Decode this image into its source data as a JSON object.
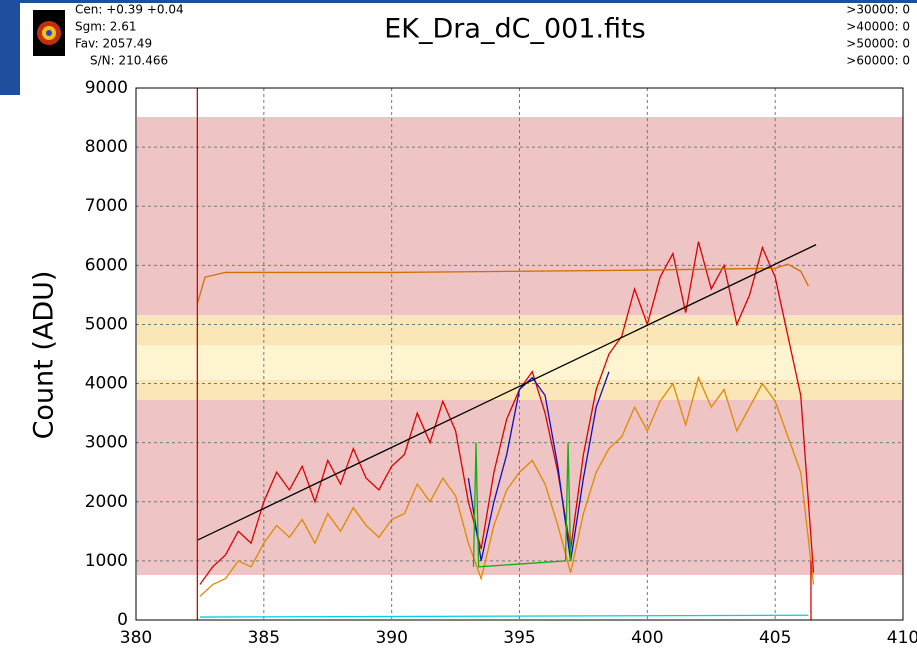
{
  "header": {
    "stats": [
      "Cen: +0.39 +0.04",
      "Sgm: 2.61",
      "Fav: 2057.49",
      "S/N: 210.466"
    ],
    "counts": [
      ">30000: 0",
      ">40000: 0",
      ">50000: 0",
      ">60000: 0"
    ]
  },
  "chart_data": {
    "type": "line",
    "title": "EK_Dra_dC_001.fits",
    "y_label": "Count (ADU)",
    "xlim": [
      380,
      410
    ],
    "xticks": [
      380,
      385,
      390,
      395,
      400,
      405,
      410
    ],
    "ylim": [
      0,
      9000
    ],
    "yticks": [
      0,
      1000,
      2000,
      3000,
      4000,
      5000,
      6000,
      7000,
      8000,
      9000
    ],
    "grid": true,
    "series": [
      {
        "color": "#e08a00",
        "x": [
          382.5,
          383,
          383.5,
          384,
          384.5,
          385,
          385.5,
          386,
          386.5,
          387,
          387.5,
          388,
          388.5,
          389,
          389.5,
          390,
          390.5,
          391,
          391.5,
          392,
          392.5,
          393,
          393.5,
          394,
          394.5,
          395,
          395.5,
          396,
          396.5,
          397,
          397.5,
          398,
          398.5,
          399,
          399.5,
          400,
          400.5,
          401,
          401.5,
          402,
          402.5,
          403,
          403.5,
          404,
          404.5,
          405,
          405.5,
          406,
          406.5
        ],
        "values": [
          400,
          600,
          700,
          1000,
          900,
          1300,
          1600,
          1400,
          1700,
          1300,
          1800,
          1500,
          1900,
          1600,
          1400,
          1700,
          1800,
          2300,
          2000,
          2400,
          2100,
          1300,
          700,
          1600,
          2200,
          2500,
          2700,
          2300,
          1600,
          800,
          1800,
          2500,
          2900,
          3100,
          3600,
          3200,
          3700,
          4000,
          3300,
          4100,
          3600,
          3900,
          3200,
          3600,
          4000,
          3700,
          3100,
          2500,
          600
        ]
      },
      {
        "color": "#e00000",
        "x": [
          382.5,
          383,
          383.5,
          384,
          384.5,
          385,
          385.5,
          386,
          386.5,
          387,
          387.5,
          388,
          388.5,
          389,
          389.5,
          390,
          390.5,
          391,
          391.5,
          392,
          392.5,
          393,
          393.5,
          394,
          394.5,
          395,
          395.5,
          396,
          396.5,
          397,
          397.5,
          398,
          398.5,
          399,
          399.5,
          400,
          400.5,
          401,
          401.5,
          402,
          402.5,
          403,
          403.5,
          404,
          404.5,
          405,
          405.5,
          406,
          406.5
        ],
        "values": [
          600,
          900,
          1100,
          1500,
          1300,
          2000,
          2500,
          2200,
          2600,
          2000,
          2700,
          2300,
          2900,
          2400,
          2200,
          2600,
          2800,
          3500,
          3000,
          3700,
          3200,
          2000,
          1200,
          2500,
          3400,
          3900,
          4200,
          3500,
          2500,
          1200,
          2800,
          3900,
          4500,
          4800,
          5600,
          5000,
          5800,
          6200,
          5200,
          6400,
          5600,
          6000,
          5000,
          5500,
          6300,
          5800,
          4800,
          3800,
          800
        ]
      },
      {
        "color": "#1010c0",
        "x": [
          393,
          393.5,
          394,
          394.5,
          395,
          395.5,
          396,
          396.5,
          397,
          397.5,
          398,
          398.5
        ],
        "values": [
          2400,
          1000,
          2000,
          2800,
          3900,
          4100,
          3800,
          2600,
          1000,
          2400,
          3600,
          4200
        ]
      },
      {
        "color": "#10b010",
        "x": [
          393.2,
          393.3,
          393.4,
          396.8,
          396.9,
          397
        ],
        "values": [
          900,
          3000,
          900,
          1000,
          3000,
          1000
        ]
      },
      {
        "color": "#00d0e0",
        "x": [
          382.5,
          406.3
        ],
        "values": [
          50,
          80
        ]
      },
      {
        "color": "#d07000",
        "x": [
          382.4,
          382.7,
          383.5,
          390,
          400,
          405,
          405.5,
          406,
          406.3
        ],
        "values": [
          5350,
          5800,
          5880,
          5880,
          5920,
          5950,
          6020,
          5900,
          5650
        ]
      },
      {
        "color": "#000000",
        "x": [
          382.4,
          406.6
        ],
        "values": [
          1350,
          6350
        ]
      },
      {
        "color": "#e00000",
        "x": [
          382.4,
          382.4
        ],
        "values": [
          0,
          9000
        ]
      },
      {
        "color": "#e00000",
        "x": [
          406.4,
          406.4
        ],
        "values": [
          0,
          1000
        ]
      }
    ]
  }
}
